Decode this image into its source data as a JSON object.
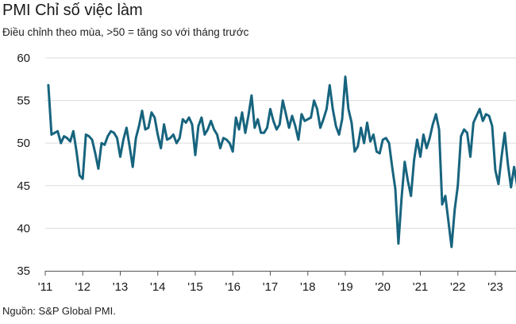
{
  "header": {
    "title": "PMI Chỉ số việc làm",
    "subtitle": "Điều chỉnh theo mùa, >50 = tăng so với tháng trước"
  },
  "footer": {
    "source": "Nguồn: S&P Global PMI."
  },
  "colors": {
    "line": "#17647e",
    "grid": "#dddddd",
    "axis": "#555555"
  },
  "chart_data": {
    "type": "line",
    "title": "PMI Chỉ số việc làm",
    "subtitle": "Điều chỉnh theo mùa, >50 = tăng so với tháng trước",
    "xlabel": "",
    "ylabel": "",
    "ylim": [
      35,
      60
    ],
    "yticks": [
      35,
      40,
      45,
      50,
      55,
      60
    ],
    "xticks": [
      {
        "label": "'11",
        "x": 2011.0
      },
      {
        "label": "'12",
        "x": 2012.0
      },
      {
        "label": "'13",
        "x": 2013.0
      },
      {
        "label": "'14",
        "x": 2014.0
      },
      {
        "label": "'15",
        "x": 2015.0
      },
      {
        "label": "'16",
        "x": 2016.0
      },
      {
        "label": "'17",
        "x": 2017.0
      },
      {
        "label": "'18",
        "x": 2018.0
      },
      {
        "label": "'19",
        "x": 2019.0
      },
      {
        "label": "'20",
        "x": 2020.0
      },
      {
        "label": "'21",
        "x": 2021.0
      },
      {
        "label": "'22",
        "x": 2022.0
      },
      {
        "label": "'23",
        "x": 2023.0
      }
    ],
    "xlim": [
      2011.0,
      2023.55
    ],
    "grid": true,
    "legend": "none",
    "series": [
      {
        "name": "PMI Chỉ số việc làm",
        "x_start": 2011.083,
        "x_step": 0.08333,
        "values": [
          56.8,
          51.0,
          51.2,
          51.4,
          50.0,
          50.8,
          50.6,
          50.2,
          51.4,
          49.0,
          46.2,
          45.8,
          51.0,
          50.8,
          50.4,
          48.8,
          47.0,
          50.0,
          49.8,
          50.8,
          51.4,
          51.2,
          50.6,
          48.4,
          50.4,
          51.8,
          49.6,
          47.2,
          50.6,
          52.0,
          53.8,
          51.6,
          51.8,
          53.6,
          53.0,
          51.0,
          49.4,
          52.2,
          50.4,
          50.6,
          51.0,
          50.0,
          50.6,
          52.8,
          52.4,
          53.0,
          52.2,
          48.6,
          52.0,
          53.0,
          51.0,
          51.6,
          52.6,
          51.6,
          51.0,
          49.4,
          50.6,
          50.4,
          50.0,
          49.0,
          53.0,
          51.6,
          53.6,
          51.2,
          53.2,
          55.6,
          51.8,
          52.8,
          51.2,
          51.2,
          51.8,
          54.0,
          52.6,
          51.6,
          52.2,
          55.0,
          53.4,
          51.8,
          53.2,
          52.0,
          50.4,
          53.4,
          52.6,
          52.8,
          53.0,
          55.0,
          54.0,
          51.8,
          52.8,
          54.0,
          56.8,
          54.0,
          52.0,
          51.0,
          52.8,
          57.8,
          54.0,
          52.4,
          49.0,
          49.6,
          51.8,
          50.0,
          52.4,
          50.2,
          51.0,
          49.0,
          48.8,
          50.4,
          50.6,
          50.0,
          47.2,
          44.6,
          38.2,
          43.6,
          47.8,
          45.6,
          43.8,
          48.0,
          50.4,
          48.4,
          51.0,
          49.4,
          50.6,
          52.2,
          53.4,
          51.6,
          42.8,
          43.8,
          40.8,
          37.8,
          42.2,
          45.0,
          50.8,
          51.6,
          51.2,
          48.4,
          52.4,
          53.2,
          54.0,
          52.6,
          53.4,
          53.2,
          52.0,
          46.8,
          45.2,
          48.4,
          51.2,
          47.6,
          44.8,
          47.2,
          45.0,
          48.6
        ]
      }
    ]
  }
}
